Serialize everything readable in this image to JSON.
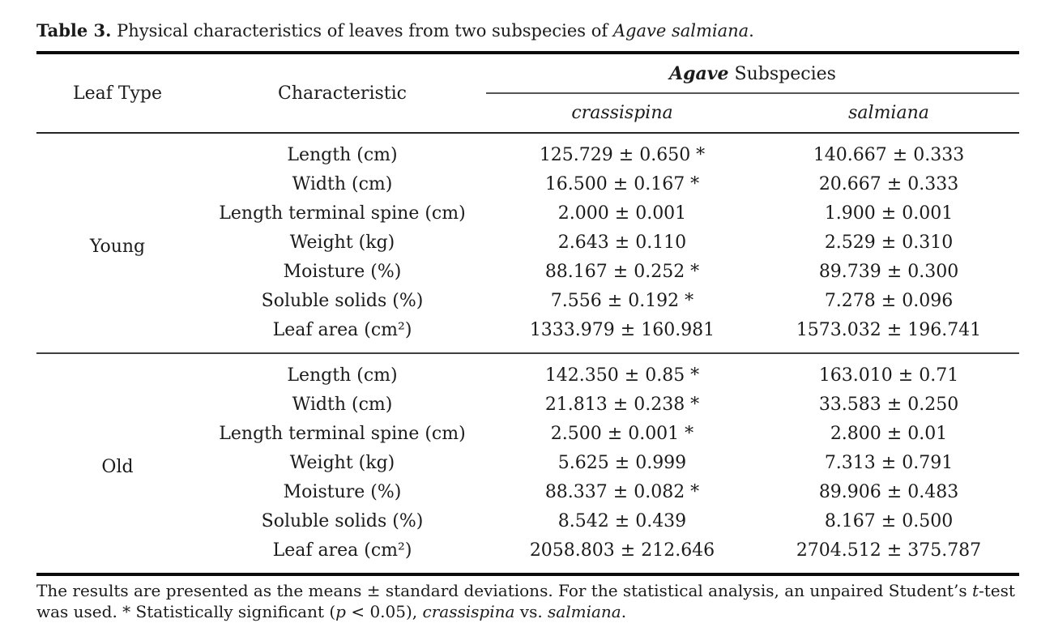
{
  "caption": {
    "label": "Table 3.",
    "text": " Physical characteristics of leaves from two subspecies of ",
    "species": "Agave salmiana",
    "period": "."
  },
  "table": {
    "col_headers": {
      "leaf_type": "Leaf Type",
      "characteristic": "Characteristic",
      "group_italic": "Agave",
      "group_rest": " Subspecies",
      "col1": "crassispina",
      "col2": "salmiana"
    },
    "sections": [
      {
        "leaf_type": "Young",
        "rows": [
          {
            "characteristic": "Length (cm)",
            "crassispina": "125.729 ± 0.650 *",
            "salmiana": "140.667 ± 0.333"
          },
          {
            "characteristic": "Width (cm)",
            "crassispina": "16.500 ± 0.167 *",
            "salmiana": "20.667 ± 0.333"
          },
          {
            "characteristic": "Length terminal spine (cm)",
            "crassispina": "2.000 ± 0.001",
            "salmiana": "1.900 ± 0.001"
          },
          {
            "characteristic": "Weight (kg)",
            "crassispina": "2.643 ± 0.110",
            "salmiana": "2.529 ± 0.310"
          },
          {
            "characteristic": "Moisture (%)",
            "crassispina": "88.167 ± 0.252 *",
            "salmiana": "89.739 ± 0.300"
          },
          {
            "characteristic": "Soluble solids (%)",
            "crassispina": "7.556 ± 0.192 *",
            "salmiana": "7.278 ± 0.096"
          },
          {
            "characteristic": "Leaf area (cm²)",
            "crassispina": "1333.979 ± 160.981",
            "salmiana": "1573.032 ± 196.741"
          }
        ]
      },
      {
        "leaf_type": "Old",
        "rows": [
          {
            "characteristic": "Length (cm)",
            "crassispina": "142.350 ± 0.85 *",
            "salmiana": "163.010 ± 0.71"
          },
          {
            "characteristic": "Width (cm)",
            "crassispina": "21.813 ± 0.238 *",
            "salmiana": "33.583 ± 0.250"
          },
          {
            "characteristic": "Length terminal spine (cm)",
            "crassispina": "2.500 ± 0.001 *",
            "salmiana": "2.800 ± 0.01"
          },
          {
            "characteristic": "Weight (kg)",
            "crassispina": "5.625 ± 0.999",
            "salmiana": "7.313 ± 0.791"
          },
          {
            "characteristic": "Moisture (%)",
            "crassispina": "88.337 ± 0.082 *",
            "salmiana": "89.906 ± 0.483"
          },
          {
            "characteristic": "Soluble solids (%)",
            "crassispina": "8.542 ± 0.439",
            "salmiana": "8.167 ± 0.500"
          },
          {
            "characteristic": "Leaf area (cm²)",
            "crassispina": "2058.803 ± 212.646",
            "salmiana": "2704.512 ± 375.787"
          }
        ]
      }
    ]
  },
  "footnote": {
    "p1": "The results are presented as the means ± standard deviations. For the statistical analysis, an unpaired Student’s ",
    "t": "t",
    "p2": "-test was used. * Statistically significant (",
    "p": "p",
    "p3": " < 0.05), ",
    "sp1": "crassispina",
    "p4": " vs. ",
    "sp2": "salmiana",
    "p5": "."
  }
}
